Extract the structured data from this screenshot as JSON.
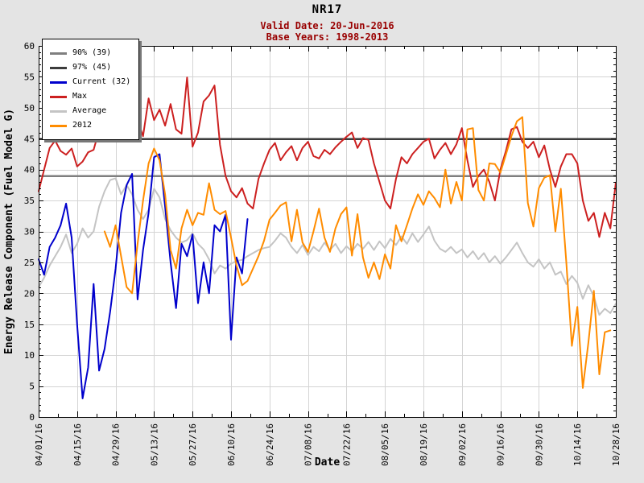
{
  "header": {
    "title": "NR17",
    "valid_date": "Valid Date: 20-Jun-2016",
    "base_years": "Base Years: 1998-2013"
  },
  "colors": {
    "page_bg": "#e4e4e4",
    "plot_bg": "#ffffff",
    "grid": "#d4d4d4",
    "axis": "#000000",
    "subtitle_text": "#990000",
    "pct90": "#7f7f7f",
    "pct97": "#3c3c3c",
    "current": "#0000cc",
    "max": "#cc2020",
    "average": "#c4c4c4",
    "y2012": "#ff8c00"
  },
  "chart_data": {
    "type": "line",
    "title": "NR17",
    "xlabel": "Date",
    "ylabel": "Energy Release Component (Fuel Model G)",
    "ylim": [
      0,
      60
    ],
    "y_ticks": [
      0,
      5,
      10,
      15,
      20,
      25,
      30,
      35,
      40,
      45,
      50,
      55,
      60
    ],
    "y_minor_step": 1,
    "x_range_days": [
      0,
      210
    ],
    "x_minor_step": 7,
    "grid": true,
    "legend_position": "top-left",
    "x_ticks": [
      {
        "label": "04/01/16",
        "day": 0
      },
      {
        "label": "04/15/16",
        "day": 14
      },
      {
        "label": "04/29/16",
        "day": 28
      },
      {
        "label": "05/13/16",
        "day": 42
      },
      {
        "label": "05/27/16",
        "day": 56
      },
      {
        "label": "06/10/16",
        "day": 70
      },
      {
        "label": "06/24/16",
        "day": 84
      },
      {
        "label": "07/08/16",
        "day": 98
      },
      {
        "label": "07/22/16",
        "day": 112
      },
      {
        "label": "08/05/16",
        "day": 126
      },
      {
        "label": "08/19/16",
        "day": 140
      },
      {
        "label": "09/02/16",
        "day": 154
      },
      {
        "label": "09/16/16",
        "day": 168
      },
      {
        "label": "09/30/16",
        "day": 182
      },
      {
        "label": "10/14/16",
        "day": 196
      },
      {
        "label": "10/28/16",
        "day": 210
      }
    ],
    "ref_lines": [
      {
        "name": "90% (39)",
        "value": 39,
        "color": "#7f7f7f",
        "width": 2.5
      },
      {
        "name": "97% (45)",
        "value": 45,
        "color": "#3c3c3c",
        "width": 2.5
      }
    ],
    "legend": [
      {
        "id": "90pct",
        "label": "90% (39)",
        "color": "#7f7f7f"
      },
      {
        "id": "97pct",
        "label": "97% (45)",
        "color": "#3c3c3c"
      },
      {
        "id": "current",
        "label": "Current (32)",
        "color": "#0000cc"
      },
      {
        "id": "max",
        "label": "Max",
        "color": "#cc2020"
      },
      {
        "id": "average",
        "label": "Average",
        "color": "#c4c4c4"
      },
      {
        "id": "2012",
        "label": "2012",
        "color": "#ff8c00"
      }
    ],
    "series": [
      {
        "id": "average",
        "name": "Average",
        "color": "#c4c4c4",
        "width": 2,
        "day_start": 0,
        "day_step": 2,
        "values": [
          21,
          22.5,
          24.5,
          26,
          27.5,
          29.5,
          26.5,
          28,
          30.5,
          29,
          30,
          34,
          36.5,
          38.3,
          38.6,
          36,
          37.5,
          36,
          33.5,
          32,
          33.5,
          36.9,
          35.5,
          32,
          30.2,
          29,
          28.2,
          28.6,
          29.7,
          28,
          27.1,
          25.5,
          23.2,
          24.5,
          24,
          24.8,
          25.2,
          25.4,
          26,
          26.5,
          27,
          27.3,
          27.5,
          28.5,
          29.7,
          29,
          27.5,
          26.5,
          27.8,
          26.2,
          27.5,
          26.8,
          28.2,
          27,
          28,
          26.5,
          27.6,
          26.8,
          28,
          27.2,
          28.3,
          27,
          28.4,
          27.3,
          28.8,
          27.8,
          29.2,
          28,
          29.7,
          28.3,
          29.5,
          30.8,
          28.5,
          27.2,
          26.7,
          27.5,
          26.5,
          27.1,
          25.8,
          26.8,
          25.5,
          26.5,
          25,
          26,
          24.8,
          25.8,
          27,
          28.2,
          26.5,
          25,
          24.3,
          25.5,
          24,
          25,
          23,
          23.5,
          21.5,
          22.8,
          21.7,
          19.1,
          21.3,
          19.5,
          16.5,
          17.5,
          16.8,
          18.3
        ]
      },
      {
        "id": "current",
        "name": "Current (32)",
        "color": "#0000cc",
        "width": 2,
        "day_start": 0,
        "day_step": 2,
        "values": [
          25.5,
          23,
          27.5,
          29,
          31,
          34.5,
          29,
          15,
          3,
          8,
          21.5,
          7.5,
          11,
          17,
          24,
          33,
          37.5,
          39.3,
          19,
          27,
          33,
          42,
          42.5,
          34,
          25,
          17.6,
          28,
          26,
          29.5,
          18.4,
          25,
          20,
          31,
          30,
          32.7,
          12.5,
          25.8,
          23.2,
          32
        ]
      },
      {
        "id": "max",
        "name": "Max",
        "color": "#cc2020",
        "width": 2,
        "day_start": 0,
        "day_step": 2,
        "values": [
          36.5,
          40,
          43.5,
          44.7,
          43,
          42.4,
          43.4,
          40.5,
          41.3,
          42.8,
          43.2,
          46.4,
          48.5,
          50.5,
          52,
          54,
          57.5,
          56.5,
          48,
          45.4,
          51.5,
          48,
          49.7,
          47.1,
          50.6,
          46.5,
          45.8,
          54.9,
          43.7,
          46,
          51,
          52,
          53.6,
          44,
          39,
          36.5,
          35.5,
          37,
          34.5,
          33.7,
          38.5,
          41,
          43.2,
          44.3,
          41.5,
          42.8,
          43.8,
          41.5,
          43.5,
          44.5,
          42.2,
          41.8,
          43.2,
          42.5,
          43.6,
          44.5,
          45.3,
          46,
          43.5,
          45.1,
          44.8,
          41,
          38,
          35,
          33.7,
          38.5,
          42,
          41,
          42.5,
          43.5,
          44.5,
          45,
          41.8,
          43.2,
          44.3,
          42.5,
          44.1,
          46.7,
          41.5,
          37.2,
          39,
          40,
          38,
          35,
          40,
          43,
          46.5,
          46.9,
          44.5,
          43.5,
          44.5,
          42,
          43.9,
          40,
          37.2,
          40.5,
          42.5,
          42.5,
          41,
          35,
          31.7,
          33,
          29.1,
          33,
          30.5,
          37.9
        ]
      },
      {
        "id": "2012",
        "name": "2012",
        "color": "#ff8c00",
        "width": 2,
        "day_start": 24,
        "day_step": 2,
        "values": [
          30,
          27.5,
          31,
          26,
          21,
          20,
          28,
          35,
          41,
          43.4,
          41.5,
          36,
          27,
          24,
          30.5,
          33.5,
          31,
          33,
          32.7,
          37.8,
          33.5,
          32.8,
          33.3,
          29,
          24.5,
          21.3,
          22,
          24,
          26,
          28.5,
          31.9,
          33,
          34.2,
          34.7,
          28.4,
          33.5,
          28.2,
          26.7,
          30,
          33.7,
          29,
          26.7,
          30.5,
          32.8,
          33.9,
          26.1,
          32.8,
          25.8,
          22.5,
          25,
          22.3,
          26.3,
          24,
          31,
          28.4,
          31,
          33.7,
          36,
          34.3,
          36.5,
          35.4,
          33.9,
          40,
          34.5,
          38,
          35,
          46.5,
          46.7,
          36.7,
          35,
          41,
          40.9,
          39.5,
          42.4,
          45.4,
          47.8,
          48.5,
          34.6,
          30.8,
          37,
          38.7,
          39.1,
          30,
          36.9,
          25,
          11.5,
          17.8,
          4.7,
          12,
          20.4,
          6.9,
          13.7,
          14
        ]
      }
    ]
  }
}
